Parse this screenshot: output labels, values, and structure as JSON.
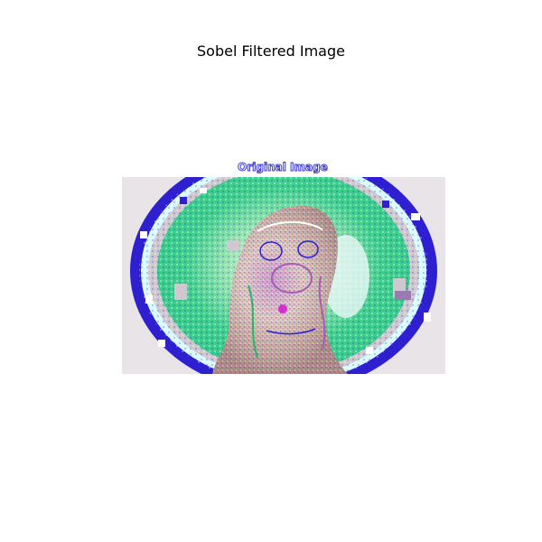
{
  "figure": {
    "title": "Sobel Filtered Image"
  },
  "image": {
    "description_text": "Original Image",
    "palette": {
      "edge_dark": "#2e1fd0",
      "edge_cyan": "#d8fbff",
      "field_green": "#37d08a",
      "field_light_green": "#8ae6a8",
      "ring_gray": "#cfc8cf",
      "subject_pink": "#e9c9c7",
      "subject_brown": "#b58a88",
      "subject_purple": "#a35fb2",
      "background": "#ffffff"
    }
  }
}
